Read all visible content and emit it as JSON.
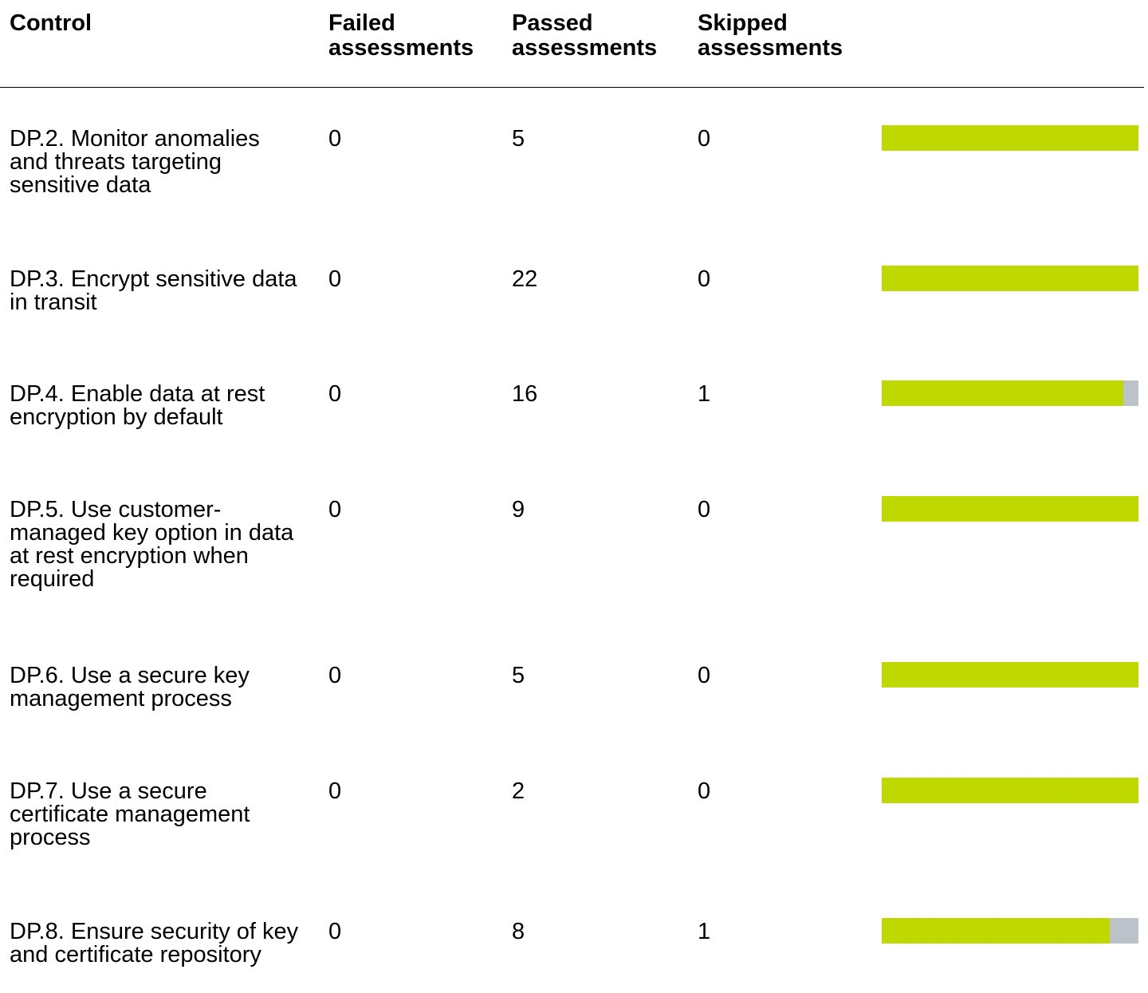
{
  "colors": {
    "passed": "#bfd900",
    "skipped": "#bcc2c9",
    "failed": "#e81123"
  },
  "header": {
    "control": "Control",
    "failed": "Failed\nassessments",
    "passed": "Passed\nassessments",
    "skipped": "Skipped\nassessments"
  },
  "rows": [
    {
      "control": "DP.2. Monitor anomalies and threats targeting sensitive data",
      "failed": "0",
      "passed": "5",
      "skipped": "0"
    },
    {
      "control": "DP.3. Encrypt sensitive data in transit",
      "failed": "0",
      "passed": "22",
      "skipped": "0"
    },
    {
      "control": "DP.4. Enable data at rest encryption by default",
      "failed": "0",
      "passed": "16",
      "skipped": "1"
    },
    {
      "control": "DP.5. Use customer-managed key option in data at rest encryption when required",
      "failed": "0",
      "passed": "9",
      "skipped": "0"
    },
    {
      "control": "DP.6. Use a secure key management process",
      "failed": "0",
      "passed": "5",
      "skipped": "0"
    },
    {
      "control": "DP.7. Use a secure certificate management process",
      "failed": "0",
      "passed": "2",
      "skipped": "0"
    },
    {
      "control": "DP.8. Ensure security of key and certificate repository",
      "failed": "0",
      "passed": "8",
      "skipped": "1"
    }
  ]
}
